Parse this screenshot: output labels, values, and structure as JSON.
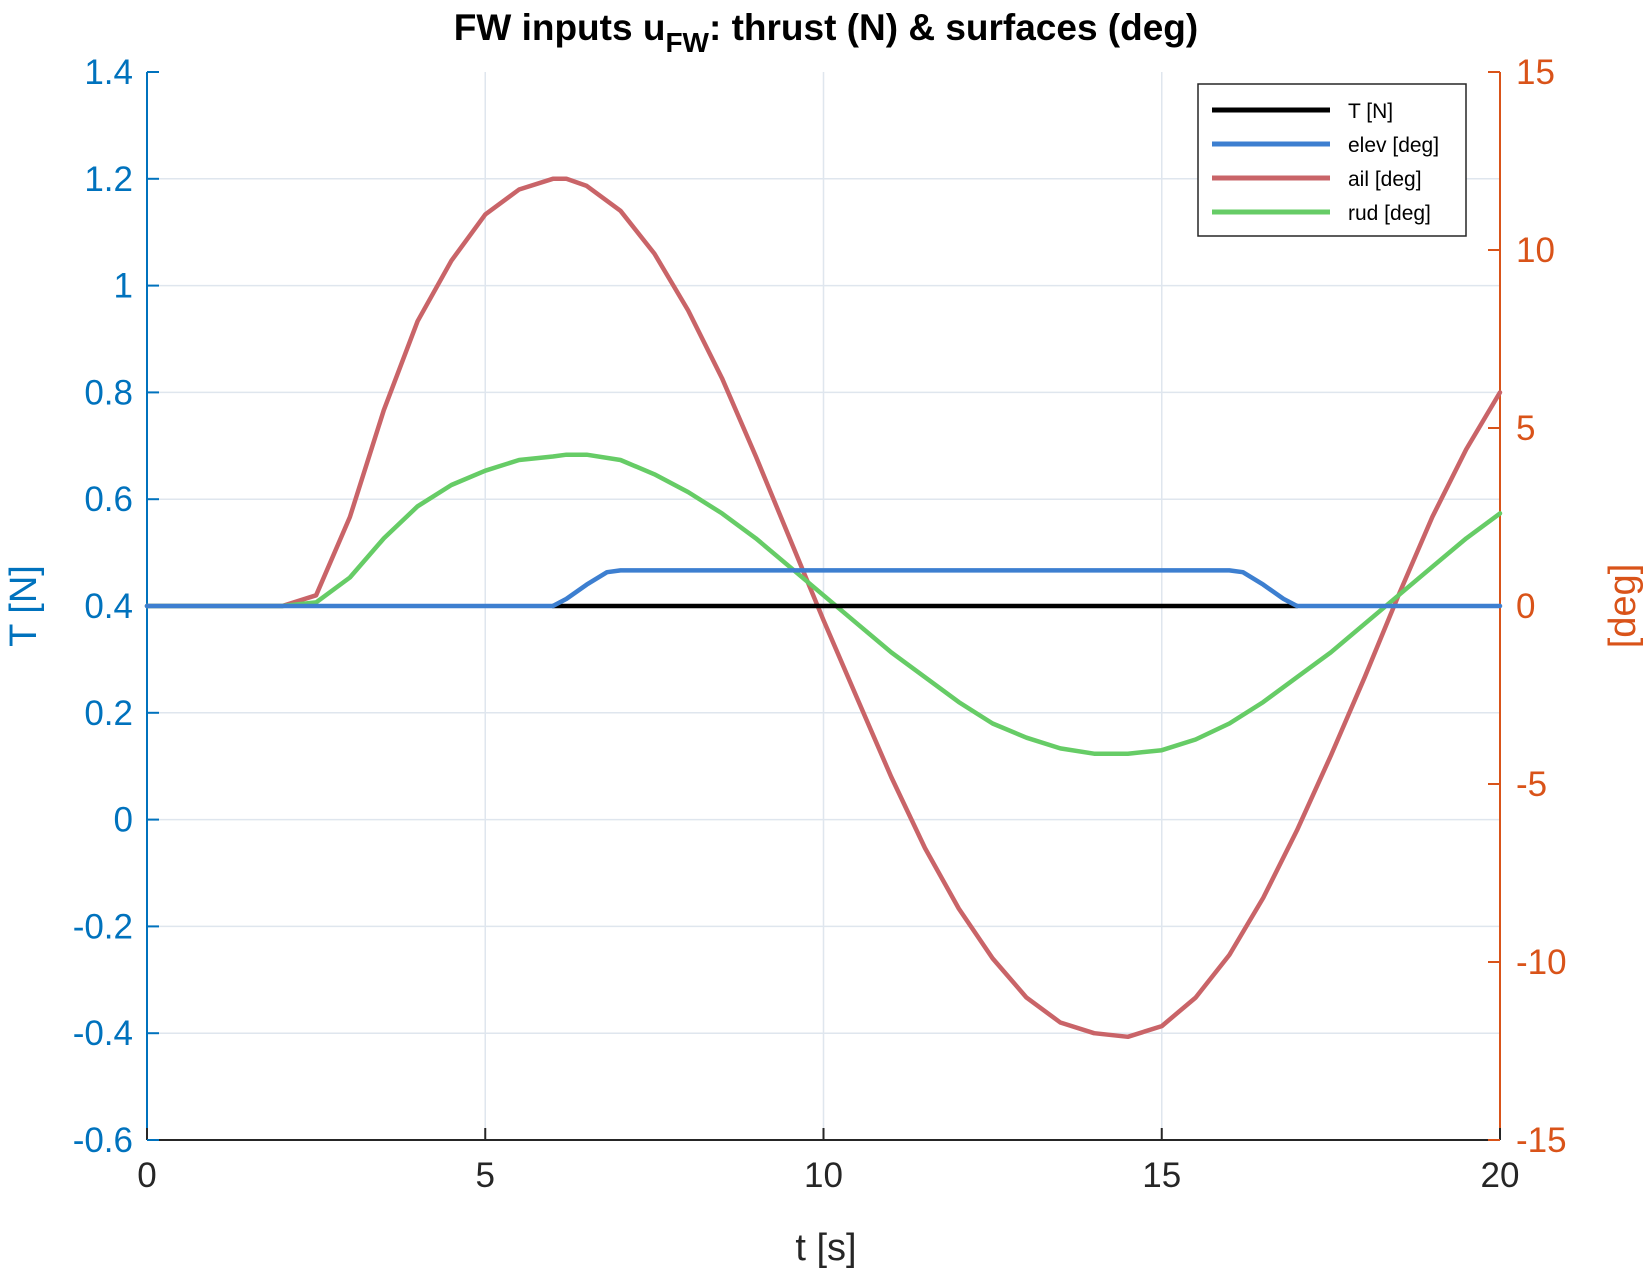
{
  "chart_data": {
    "type": "line",
    "title": {
      "main": "FW inputs u",
      "subscript": "FW",
      "rest": ": thrust (N) & surfaces (deg)"
    },
    "xlabel": "t [s]",
    "ylabel_left": "T [N]",
    "ylabel_right": "[deg]",
    "xlim": [
      0,
      20
    ],
    "ylim_left": [
      -0.6,
      1.4
    ],
    "ylim_right": [
      -15,
      15
    ],
    "x_ticks": [
      "0",
      "5",
      "10",
      "15",
      "20"
    ],
    "x_tick_values": [
      0,
      5,
      10,
      15,
      20
    ],
    "y_left_ticks": [
      "-0.6",
      "-0.4",
      "-0.2",
      "0",
      "0.2",
      "0.4",
      "0.6",
      "0.8",
      "1",
      "1.2",
      "1.4"
    ],
    "y_left_tick_values": [
      -0.6,
      -0.4,
      -0.2,
      0,
      0.2,
      0.4,
      0.6,
      0.8,
      1,
      1.2,
      1.4
    ],
    "y_right_ticks": [
      "-15",
      "-10",
      "-5",
      "0",
      "5",
      "10",
      "15"
    ],
    "y_right_tick_values": [
      -15,
      -10,
      -5,
      0,
      5,
      10,
      15
    ],
    "grid": true,
    "legend_position": "top-right",
    "colors": {
      "left_axis": "#0072BD",
      "right_axis": "#D95319",
      "grid": "#dfe6ee"
    },
    "series": [
      {
        "name": "T [N]",
        "axis": "left",
        "color": "#000000",
        "x": [
          6,
          17
        ],
        "y": [
          0.4,
          0.4
        ]
      },
      {
        "name": "elev [deg]",
        "axis": "right",
        "color": "#3D7FD0",
        "x": [
          0,
          6,
          6.2,
          6.5,
          6.8,
          7,
          16,
          16.2,
          16.5,
          16.8,
          17,
          20
        ],
        "y": [
          0,
          0,
          0.2,
          0.6,
          0.95,
          1.0,
          1.0,
          0.95,
          0.6,
          0.2,
          0,
          0
        ]
      },
      {
        "name": "ail [deg]",
        "axis": "right",
        "color": "#C96468",
        "x": [
          0,
          2,
          2.5,
          3,
          3.5,
          4,
          4.5,
          5,
          5.5,
          6,
          6.2,
          6.5,
          7,
          7.5,
          8,
          8.5,
          9,
          9.5,
          10,
          10.5,
          11,
          11.5,
          12,
          12.5,
          13,
          13.5,
          14,
          14.5,
          15,
          15.5,
          16,
          16.5,
          17,
          17.5,
          18,
          18.5,
          19,
          19.5,
          20
        ],
        "y": [
          0,
          0,
          0.3,
          2.5,
          5.5,
          8.0,
          9.7,
          11.0,
          11.7,
          12.0,
          12.0,
          11.8,
          11.1,
          9.9,
          8.3,
          6.4,
          4.2,
          1.9,
          -0.4,
          -2.6,
          -4.8,
          -6.8,
          -8.5,
          -9.9,
          -11.0,
          -11.7,
          -12.0,
          -12.1,
          -11.8,
          -11.0,
          -9.8,
          -8.2,
          -6.3,
          -4.2,
          -2.0,
          0.3,
          2.5,
          4.4,
          6.0
        ]
      },
      {
        "name": "rud [deg]",
        "axis": "right",
        "color": "#66CC66",
        "x": [
          0,
          2,
          2.5,
          3,
          3.5,
          4,
          4.5,
          5,
          5.5,
          6,
          6.2,
          6.5,
          7,
          7.5,
          8,
          8.5,
          9,
          9.5,
          10,
          10.5,
          11,
          11.5,
          12,
          12.5,
          13,
          13.5,
          14,
          14.5,
          15,
          15.5,
          16,
          16.5,
          17,
          17.5,
          18,
          18.5,
          19,
          19.5,
          20
        ],
        "y": [
          0,
          0,
          0.1,
          0.8,
          1.9,
          2.8,
          3.4,
          3.8,
          4.1,
          4.2,
          4.25,
          4.25,
          4.1,
          3.7,
          3.2,
          2.6,
          1.9,
          1.1,
          0.3,
          -0.5,
          -1.3,
          -2.0,
          -2.7,
          -3.3,
          -3.7,
          -4.0,
          -4.15,
          -4.15,
          -4.05,
          -3.75,
          -3.3,
          -2.7,
          -2.0,
          -1.3,
          -0.5,
          0.3,
          1.1,
          1.9,
          2.6
        ]
      }
    ]
  }
}
